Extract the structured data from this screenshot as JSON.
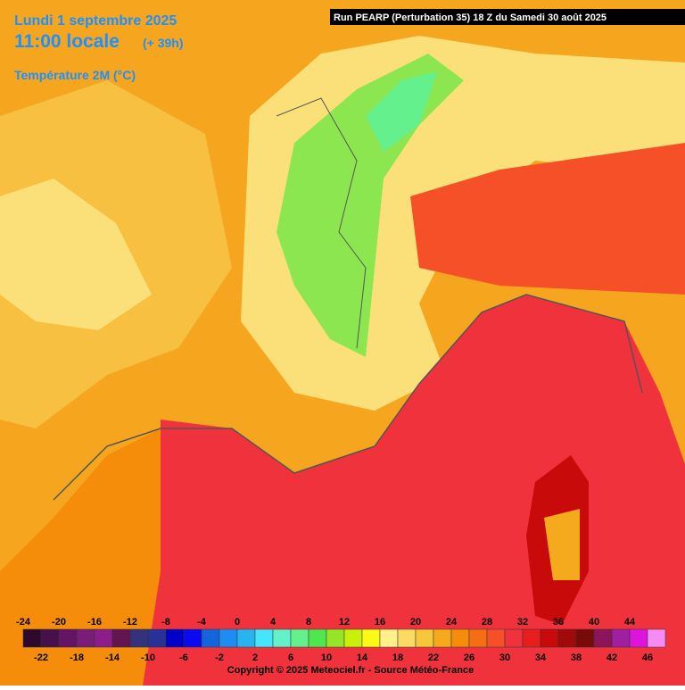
{
  "header": {
    "date": "Lundi 1 septembre 2025",
    "time": "11:00 locale",
    "offset": "(+ 39h)",
    "variable": "Température 2M (°C)"
  },
  "run": "Run PEARP (Perturbation 35) 18 Z du Samedi 30 août 2025",
  "legend": {
    "values": [
      -24,
      -22,
      -20,
      -18,
      -16,
      -14,
      -12,
      -10,
      -8,
      -6,
      -4,
      -2,
      0,
      2,
      4,
      6,
      8,
      10,
      12,
      14,
      16,
      18,
      20,
      22,
      24,
      26,
      28,
      30,
      32,
      34,
      36,
      38,
      40,
      42,
      44,
      46
    ],
    "colors": [
      "#2d0a2d",
      "#46104b",
      "#641464",
      "#781e78",
      "#8c1e8c",
      "#641450",
      "#32327d",
      "#283296",
      "#0000c8",
      "#0a0af0",
      "#1464dc",
      "#1e8cf0",
      "#28b4f0",
      "#46e6fa",
      "#64f0c8",
      "#64f08c",
      "#50e650",
      "#96e628",
      "#c8f00a",
      "#fafa14",
      "#fff08c",
      "#fadc64",
      "#f5c83c",
      "#f5aa1e",
      "#f58c0a",
      "#f56e14",
      "#f55028",
      "#f0323c",
      "#e61e1e",
      "#c80a0a",
      "#a00a0a",
      "#780a0a",
      "#8c145a",
      "#a01ea0",
      "#dc14dc",
      "#f58cf5"
    ]
  },
  "copyright": "Copyright © 2025 Meteociel.fr - Source Météo-France"
}
